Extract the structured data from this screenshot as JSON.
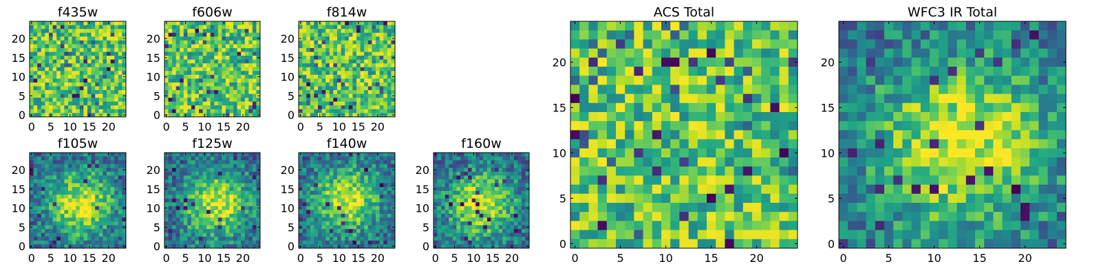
{
  "figure": {
    "description_colormap": "viridis"
  },
  "chart_data": [
    {
      "type": "heatmap",
      "title": "f435w",
      "xticks": [
        0,
        5,
        10,
        15,
        20
      ],
      "yticks": [
        0,
        5,
        10,
        15,
        20
      ],
      "xlim": [
        0,
        24
      ],
      "ylim": [
        0,
        24
      ],
      "grid_size": 25,
      "pattern": "noise"
    },
    {
      "type": "heatmap",
      "title": "f606w",
      "xticks": [
        0,
        5,
        10,
        15,
        20
      ],
      "yticks": [
        0,
        5,
        10,
        15,
        20
      ],
      "xlim": [
        0,
        24
      ],
      "ylim": [
        0,
        24
      ],
      "grid_size": 25,
      "pattern": "noise"
    },
    {
      "type": "heatmap",
      "title": "f814w",
      "xticks": [
        0,
        5,
        10,
        15,
        20
      ],
      "yticks": [
        0,
        5,
        10,
        15,
        20
      ],
      "xlim": [
        0,
        24
      ],
      "ylim": [
        0,
        24
      ],
      "grid_size": 25,
      "pattern": "noise"
    },
    {
      "type": "heatmap",
      "title": "f105w",
      "xticks": [
        0,
        5,
        10,
        15,
        20
      ],
      "yticks": [
        0,
        5,
        10,
        15,
        20
      ],
      "xlim": [
        0,
        24
      ],
      "ylim": [
        0,
        24
      ],
      "grid_size": 25,
      "pattern": "source",
      "source_center": [
        13,
        11
      ]
    },
    {
      "type": "heatmap",
      "title": "f125w",
      "xticks": [
        0,
        5,
        10,
        15,
        20
      ],
      "yticks": [
        0,
        5,
        10,
        15,
        20
      ],
      "xlim": [
        0,
        24
      ],
      "ylim": [
        0,
        24
      ],
      "grid_size": 25,
      "pattern": "source",
      "source_center": [
        13,
        11
      ]
    },
    {
      "type": "heatmap",
      "title": "f140w",
      "xticks": [
        0,
        5,
        10,
        15,
        20
      ],
      "yticks": [
        0,
        5,
        10,
        15,
        20
      ],
      "xlim": [
        0,
        24
      ],
      "ylim": [
        0,
        24
      ],
      "grid_size": 25,
      "pattern": "source",
      "source_center": [
        12,
        12
      ]
    },
    {
      "type": "heatmap",
      "title": "f160w",
      "xticks": [
        0,
        5,
        10,
        15,
        20
      ],
      "yticks": [
        0,
        5,
        10,
        15,
        20
      ],
      "xlim": [
        0,
        24
      ],
      "ylim": [
        0,
        24
      ],
      "grid_size": 25,
      "pattern": "source",
      "source_center": [
        12,
        11
      ]
    },
    {
      "type": "heatmap",
      "title": "ACS Total",
      "xticks": [
        0,
        5,
        10,
        15,
        20
      ],
      "yticks": [
        0,
        5,
        10,
        15,
        20
      ],
      "xlim": [
        0,
        24
      ],
      "ylim": [
        0,
        24
      ],
      "grid_size": 25,
      "pattern": "noise"
    },
    {
      "type": "heatmap",
      "title": "WFC3 IR Total",
      "xticks": [
        0,
        5,
        10,
        15,
        20
      ],
      "yticks": [
        0,
        5,
        10,
        15,
        20
      ],
      "xlim": [
        0,
        24
      ],
      "ylim": [
        0,
        24
      ],
      "grid_size": 25,
      "pattern": "source",
      "source_center": [
        13,
        11
      ]
    }
  ]
}
